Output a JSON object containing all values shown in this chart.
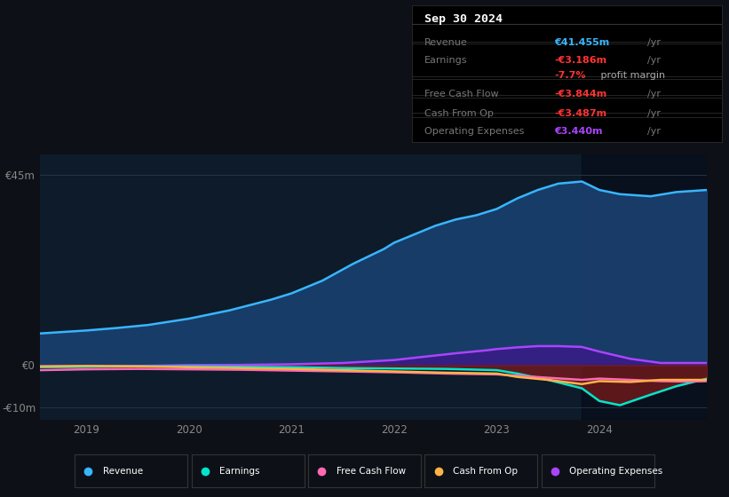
{
  "bg_color": "#0d1117",
  "plot_bg_color": "#0d1b2a",
  "title_box": {
    "date": "Sep 30 2024",
    "rows": [
      {
        "label": "Revenue",
        "value": "€41.455m",
        "unit": "/yr",
        "value_color": "#38b6ff"
      },
      {
        "label": "Earnings",
        "value": "-€3.186m",
        "unit": "/yr",
        "value_color": "#ff3333"
      },
      {
        "label": "",
        "value": "-7.7%",
        "unit": " profit margin",
        "value_color": "#ff3333"
      },
      {
        "label": "Free Cash Flow",
        "value": "-€3.844m",
        "unit": "/yr",
        "value_color": "#ff3333"
      },
      {
        "label": "Cash From Op",
        "value": "-€3.487m",
        "unit": "/yr",
        "value_color": "#ff3333"
      },
      {
        "label": "Operating Expenses",
        "value": "€3.440m",
        "unit": "/yr",
        "value_color": "#aa44ff"
      }
    ]
  },
  "ytick_labels": [
    "€45m",
    "€0",
    "-€10m"
  ],
  "ytick_values": [
    45,
    0,
    -10
  ],
  "ylim": [
    -13,
    50
  ],
  "xlim": [
    2018.55,
    2025.05
  ],
  "xtick_labels": [
    "2019",
    "2020",
    "2021",
    "2022",
    "2023",
    "2024"
  ],
  "xtick_positions": [
    2019,
    2020,
    2021,
    2022,
    2023,
    2024
  ],
  "shaded_xstart": 2023.83,
  "revenue_x": [
    2018.55,
    2019.0,
    2019.3,
    2019.6,
    2020.0,
    2020.4,
    2020.8,
    2021.0,
    2021.3,
    2021.6,
    2021.9,
    2022.0,
    2022.2,
    2022.4,
    2022.6,
    2022.8,
    2023.0,
    2023.2,
    2023.4,
    2023.6,
    2023.83,
    2024.0,
    2024.2,
    2024.5,
    2024.75,
    2025.05
  ],
  "revenue_y": [
    7.5,
    8.2,
    8.8,
    9.5,
    11.0,
    13.0,
    15.5,
    17.0,
    20.0,
    24.0,
    27.5,
    29.0,
    31.0,
    33.0,
    34.5,
    35.5,
    37.0,
    39.5,
    41.5,
    43.0,
    43.5,
    41.5,
    40.5,
    40.0,
    41.0,
    41.5
  ],
  "opex_x": [
    2018.55,
    2019.0,
    2019.5,
    2020.0,
    2020.5,
    2021.0,
    2021.5,
    2022.0,
    2022.3,
    2022.6,
    2022.9,
    2023.0,
    2023.2,
    2023.4,
    2023.6,
    2023.83,
    2024.0,
    2024.3,
    2024.6,
    2025.05
  ],
  "opex_y": [
    -0.3,
    -0.3,
    -0.2,
    0.0,
    0.05,
    0.2,
    0.5,
    1.2,
    2.0,
    2.8,
    3.5,
    3.8,
    4.2,
    4.5,
    4.5,
    4.3,
    3.2,
    1.5,
    0.5,
    0.5
  ],
  "earnings_x": [
    2018.55,
    2019.0,
    2019.5,
    2020.0,
    2020.5,
    2021.0,
    2021.5,
    2022.0,
    2022.5,
    2023.0,
    2023.2,
    2023.5,
    2023.83,
    2024.0,
    2024.2,
    2024.5,
    2024.75,
    2025.05
  ],
  "earnings_y": [
    -0.5,
    -0.4,
    -0.3,
    -0.3,
    -0.4,
    -0.5,
    -0.7,
    -0.8,
    -0.9,
    -1.2,
    -2.0,
    -3.5,
    -5.5,
    -8.5,
    -9.5,
    -7.0,
    -5.0,
    -3.2
  ],
  "fcf_x": [
    2018.55,
    2019.0,
    2019.5,
    2020.0,
    2020.5,
    2021.0,
    2021.5,
    2022.0,
    2022.5,
    2023.0,
    2023.2,
    2023.5,
    2023.83,
    2024.0,
    2024.3,
    2024.6,
    2024.85,
    2025.05
  ],
  "fcf_y": [
    -1.2,
    -1.0,
    -0.9,
    -1.0,
    -1.1,
    -1.3,
    -1.5,
    -1.7,
    -2.0,
    -2.2,
    -2.5,
    -3.0,
    -3.5,
    -3.2,
    -3.5,
    -3.8,
    -3.9,
    -3.8
  ],
  "cop_x": [
    2018.55,
    2019.0,
    2019.5,
    2020.0,
    2020.5,
    2021.0,
    2021.5,
    2022.0,
    2022.5,
    2023.0,
    2023.2,
    2023.5,
    2023.83,
    2024.0,
    2024.3,
    2024.6,
    2024.85,
    2025.05
  ],
  "cop_y": [
    -0.3,
    -0.2,
    -0.3,
    -0.5,
    -0.7,
    -0.9,
    -1.2,
    -1.5,
    -1.8,
    -2.0,
    -2.8,
    -3.5,
    -4.5,
    -3.8,
    -4.0,
    -3.5,
    -3.5,
    -3.5
  ],
  "rev_color": "#38b6ff",
  "rev_fill": "#1a4070",
  "opex_color": "#aa44ff",
  "opex_fill": "#3a1a88",
  "earn_color": "#00e5cc",
  "earn_fill": "#7a1a1a",
  "fcf_color": "#ff69b4",
  "cop_color": "#ffb347",
  "legend": [
    {
      "label": "Revenue",
      "color": "#38b6ff"
    },
    {
      "label": "Earnings",
      "color": "#00e5cc"
    },
    {
      "label": "Free Cash Flow",
      "color": "#ff69b4"
    },
    {
      "label": "Cash From Op",
      "color": "#ffb347"
    },
    {
      "label": "Operating Expenses",
      "color": "#aa44ff"
    }
  ]
}
